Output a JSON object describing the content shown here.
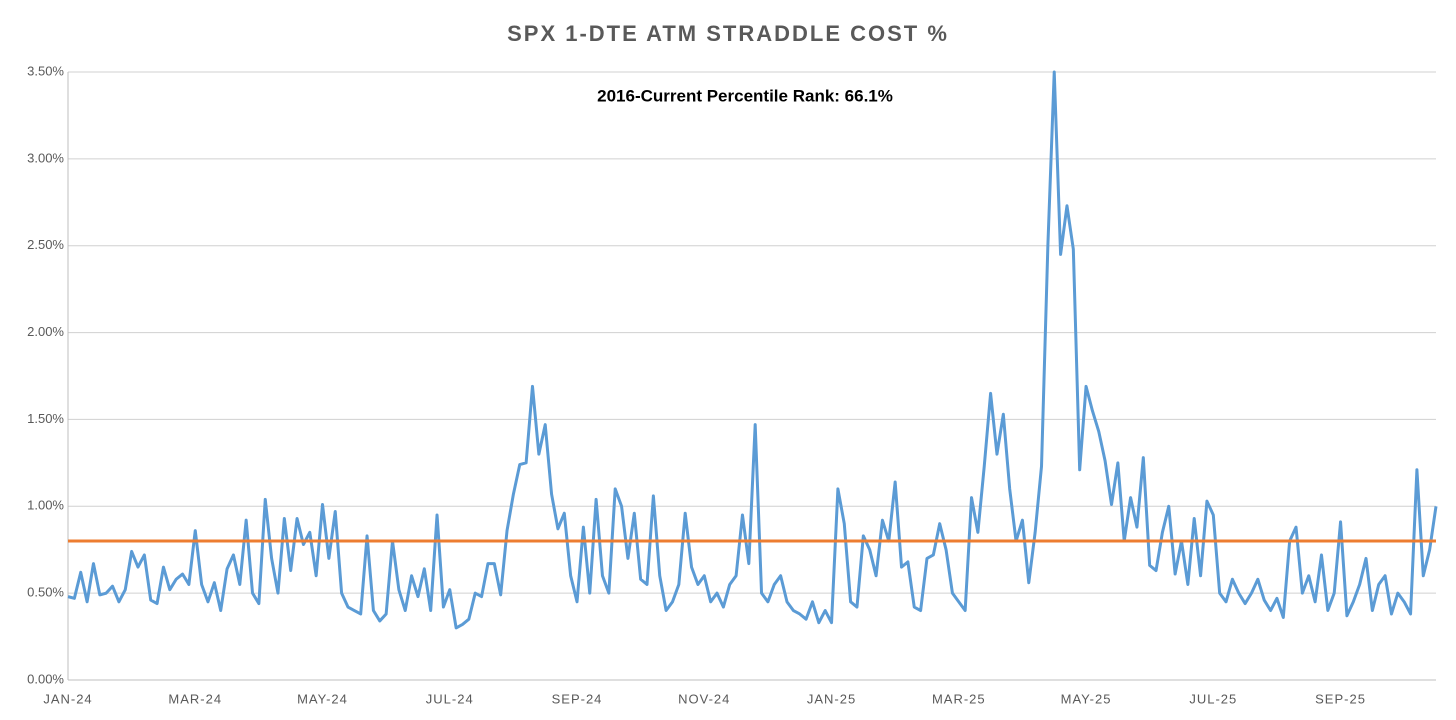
{
  "chart_data": {
    "type": "line",
    "title": "SPX 1-DTE ATM STRADDLE COST %",
    "annotation": "2016-Current Percentile Rank: 66.1%",
    "categories": [
      "JAN-24",
      null,
      null,
      null,
      null,
      null,
      null,
      null,
      null,
      null,
      null,
      null,
      null,
      null,
      null,
      null,
      null,
      null,
      null,
      null,
      "MAR-24",
      null,
      null,
      null,
      null,
      null,
      null,
      null,
      null,
      null,
      null,
      null,
      null,
      null,
      null,
      null,
      null,
      null,
      null,
      null,
      "MAY-24",
      null,
      null,
      null,
      null,
      null,
      null,
      null,
      null,
      null,
      null,
      null,
      null,
      null,
      null,
      null,
      null,
      null,
      null,
      null,
      "JUL-24",
      null,
      null,
      null,
      null,
      null,
      null,
      null,
      null,
      null,
      null,
      null,
      null,
      null,
      null,
      null,
      null,
      null,
      null,
      null,
      "SEP-24",
      null,
      null,
      null,
      null,
      null,
      null,
      null,
      null,
      null,
      null,
      null,
      null,
      null,
      null,
      null,
      null,
      null,
      null,
      null,
      "NOV-24",
      null,
      null,
      null,
      null,
      null,
      null,
      null,
      null,
      null,
      null,
      null,
      null,
      null,
      null,
      null,
      null,
      null,
      null,
      null,
      "JAN-25",
      null,
      null,
      null,
      null,
      null,
      null,
      null,
      null,
      null,
      null,
      null,
      null,
      null,
      null,
      null,
      null,
      null,
      null,
      null,
      "MAR-25",
      null,
      null,
      null,
      null,
      null,
      null,
      null,
      null,
      null,
      null,
      null,
      null,
      null,
      null,
      null,
      null,
      null,
      null,
      null,
      "MAY-25",
      null,
      null,
      null,
      null,
      null,
      null,
      null,
      null,
      null,
      null,
      null,
      null,
      null,
      null,
      null,
      null,
      null,
      null,
      null,
      "JUL-25",
      null,
      null,
      null,
      null,
      null,
      null,
      null,
      null,
      null,
      null,
      null,
      null,
      null,
      null,
      null,
      null,
      null,
      null,
      null,
      "SEP-25",
      null,
      null,
      null,
      null,
      null,
      null,
      null,
      null,
      null,
      null,
      null,
      null,
      null,
      null,
      null
    ],
    "series": [
      {
        "color": "#5b9bd5",
        "values": [
          0.48,
          0.47,
          0.62,
          0.45,
          0.67,
          0.49,
          0.5,
          0.54,
          0.45,
          0.52,
          0.74,
          0.65,
          0.72,
          0.46,
          0.44,
          0.65,
          0.52,
          0.58,
          0.61,
          0.55,
          0.86,
          0.55,
          0.45,
          0.56,
          0.4,
          0.64,
          0.72,
          0.55,
          0.92,
          0.5,
          0.44,
          1.04,
          0.7,
          0.5,
          0.93,
          0.63,
          0.93,
          0.78,
          0.85,
          0.6,
          1.01,
          0.7,
          0.97,
          0.5,
          0.42,
          0.4,
          0.38,
          0.83,
          0.4,
          0.34,
          0.38,
          0.8,
          0.52,
          0.4,
          0.6,
          0.48,
          0.64,
          0.4,
          0.95,
          0.42,
          0.52,
          0.3,
          0.32,
          0.35,
          0.5,
          0.48,
          0.67,
          0.67,
          0.49,
          0.86,
          1.07,
          1.24,
          1.25,
          1.69,
          1.3,
          1.47,
          1.07,
          0.87,
          0.96,
          0.6,
          0.45,
          0.88,
          0.5,
          1.04,
          0.6,
          0.5,
          1.1,
          1.0,
          0.7,
          0.96,
          0.58,
          0.55,
          1.06,
          0.6,
          0.4,
          0.45,
          0.55,
          0.96,
          0.65,
          0.55,
          0.6,
          0.45,
          0.5,
          0.42,
          0.55,
          0.6,
          0.95,
          0.67,
          1.47,
          0.5,
          0.45,
          0.55,
          0.6,
          0.45,
          0.4,
          0.38,
          0.35,
          0.45,
          0.33,
          0.4,
          0.33,
          1.1,
          0.9,
          0.45,
          0.42,
          0.83,
          0.75,
          0.6,
          0.92,
          0.8,
          1.14,
          0.65,
          0.68,
          0.42,
          0.4,
          0.7,
          0.72,
          0.9,
          0.75,
          0.5,
          0.45,
          0.4,
          1.05,
          0.85,
          1.23,
          1.65,
          1.3,
          1.53,
          1.1,
          0.8,
          0.92,
          0.56,
          0.85,
          1.23,
          2.5,
          3.5,
          2.45,
          2.73,
          2.48,
          1.21,
          1.69,
          1.55,
          1.43,
          1.26,
          1.01,
          1.25,
          0.8,
          1.05,
          0.88,
          1.28,
          0.66,
          0.63,
          0.85,
          1.0,
          0.61,
          0.8,
          0.55,
          0.93,
          0.6,
          1.03,
          0.95,
          0.5,
          0.45,
          0.58,
          0.5,
          0.44,
          0.5,
          0.58,
          0.46,
          0.4,
          0.47,
          0.36,
          0.8,
          0.88,
          0.5,
          0.6,
          0.45,
          0.72,
          0.4,
          0.5,
          0.91,
          0.37,
          0.45,
          0.55,
          0.7,
          0.4,
          0.55,
          0.6,
          0.38,
          0.5,
          0.45,
          0.38,
          1.21,
          0.6,
          0.75,
          1.0
        ]
      }
    ],
    "reference_line": {
      "value": 0.8,
      "color": "#ed7d31"
    },
    "ylim": [
      0,
      3.5
    ],
    "yticks": [
      {
        "value": 0,
        "label": "0.00%"
      },
      {
        "value": 0.5,
        "label": "0.50%"
      },
      {
        "value": 1,
        "label": "1.00%"
      },
      {
        "value": 1.5,
        "label": "1.50%"
      },
      {
        "value": 2,
        "label": "2.00%"
      },
      {
        "value": 2.5,
        "label": "2.50%"
      },
      {
        "value": 3,
        "label": "3.00%"
      },
      {
        "value": 3.5,
        "label": "3.50%"
      }
    ],
    "grid": true
  }
}
